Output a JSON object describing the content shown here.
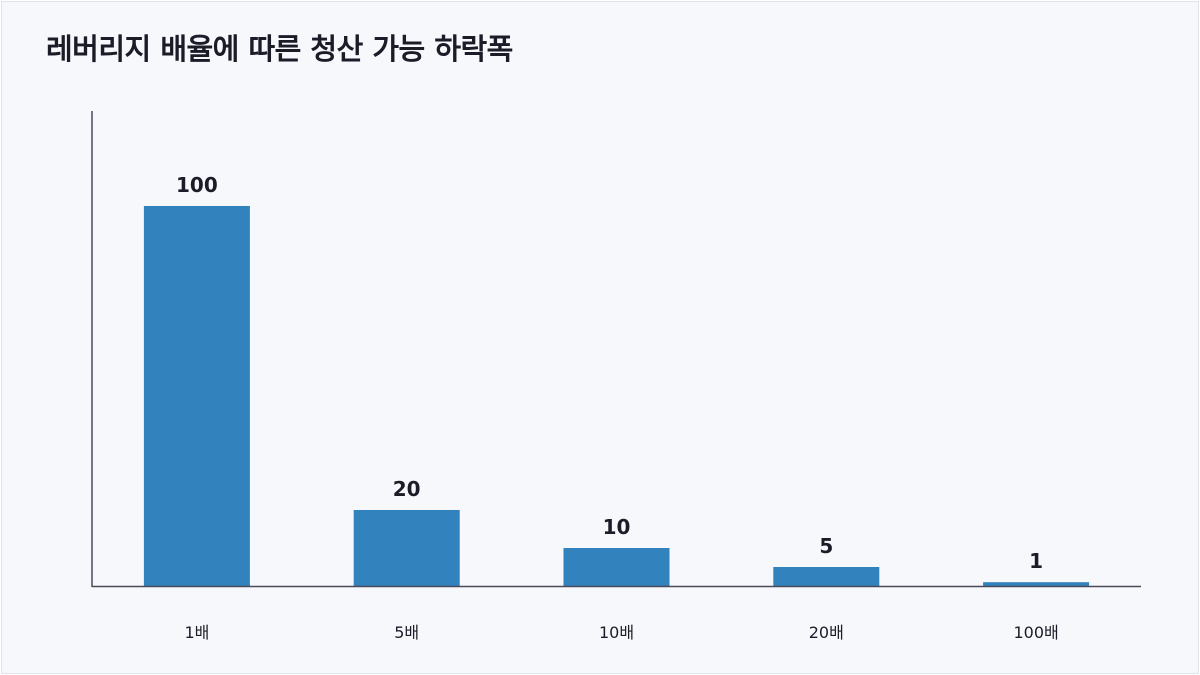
{
  "chart_data": {
    "type": "bar",
    "title": "레버리지 배율에 따른 청산 가능 하락폭",
    "xlabel": "",
    "ylabel": "",
    "categories": [
      "1배",
      "5배",
      "10배",
      "20배",
      "100배"
    ],
    "values": [
      100,
      20,
      10,
      5,
      1
    ],
    "data_labels": [
      "100",
      "20",
      "10",
      "5",
      "1"
    ],
    "ylim": [
      0,
      125
    ],
    "grid": false,
    "legend": "none",
    "bar_color": "#3182bd",
    "axis_color": "#4a4a5a"
  }
}
